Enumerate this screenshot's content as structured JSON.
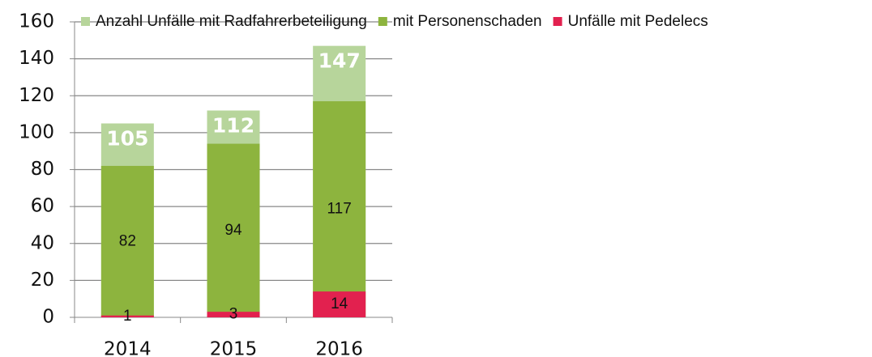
{
  "chart_data": {
    "type": "bar",
    "barmode": "overlay",
    "categories": [
      "2014",
      "2015",
      "2016"
    ],
    "series": [
      {
        "name": "Anzahl Unfälle mit Radfahrerbeteiligung",
        "color": "#b7d59b",
        "values": [
          105,
          112,
          147
        ]
      },
      {
        "name": "mit Personenschaden",
        "color": "#8db43e",
        "values": [
          82,
          94,
          117
        ]
      },
      {
        "name": "Unfälle mit Pedelecs",
        "color": "#e2214f",
        "values": [
          1,
          3,
          14
        ]
      }
    ],
    "ylim": [
      0,
      160
    ],
    "yticks": [
      0,
      20,
      40,
      60,
      80,
      100,
      120,
      140,
      160
    ],
    "grid": true,
    "legend": "top"
  }
}
